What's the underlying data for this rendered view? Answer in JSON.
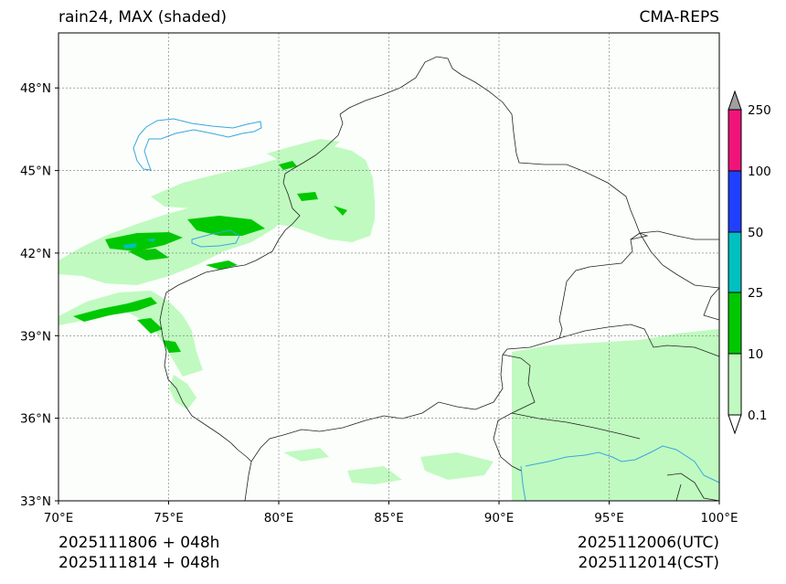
{
  "header": {
    "title_left": "rain24, MAX (shaded)",
    "title_right": "CMA-REPS"
  },
  "footer": {
    "init_utc": "2025111806  +  048h",
    "init_cst": "2025111814  +  048h",
    "valid_utc": "2025112006(UTC)",
    "valid_cst": "2025112014(CST)"
  },
  "map": {
    "lon_ticks": [
      "70°E",
      "75°E",
      "80°E",
      "85°E",
      "90°E",
      "95°E",
      "100°E"
    ],
    "lat_ticks": [
      "33°N",
      "36°N",
      "39°N",
      "42°N",
      "45°N",
      "48°N"
    ],
    "lon_range": [
      70,
      100
    ],
    "lat_range": [
      33,
      50
    ],
    "colors": {
      "background": "#fbfefb",
      "grid": "#777777",
      "border": "#222222",
      "river": "#3aa6e0",
      "light_rain": "#c0fac0",
      "moderate_rain": "#00c800"
    }
  },
  "colorbar": {
    "labels": [
      "0.1",
      "10",
      "25",
      "50",
      "100",
      "250"
    ],
    "colors": [
      "#c0fac0",
      "#00c800",
      "#00c0c0",
      "#2040ff",
      "#f0147a"
    ],
    "under_color": "#ffffff",
    "over_color": "#a0a0a0"
  }
}
